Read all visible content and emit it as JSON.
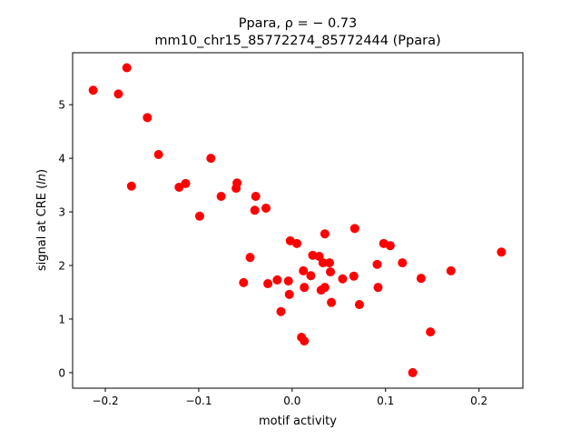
{
  "chart_data": {
    "type": "scatter",
    "title_line1": "Ppara, ρ = − 0.73",
    "title_line2": "mm10_chr15_85772274_85772444 (Ppara)",
    "xlabel": "motif activity",
    "ylabel": "signal at CRE (ln)",
    "ylabel_prefix": "signal at CRE (",
    "ylabel_italic": "ln",
    "ylabel_suffix": ")",
    "xlim": [
      -0.235,
      0.247
    ],
    "ylim": [
      -0.29,
      5.97
    ],
    "xticks": [
      -0.2,
      -0.1,
      0.0,
      0.1,
      0.2
    ],
    "xtick_labels": [
      "−0.2",
      "−0.1",
      "0.0",
      "0.1",
      "0.2"
    ],
    "yticks": [
      0,
      1,
      2,
      3,
      4,
      5
    ],
    "ytick_labels": [
      "0",
      "1",
      "2",
      "3",
      "4",
      "5"
    ],
    "grid": false,
    "marker_color": "#ff0000",
    "points": [
      [
        -0.213,
        5.27
      ],
      [
        -0.177,
        5.69
      ],
      [
        -0.186,
        5.2
      ],
      [
        -0.155,
        4.76
      ],
      [
        -0.143,
        4.07
      ],
      [
        -0.087,
        4.0
      ],
      [
        -0.172,
        3.48
      ],
      [
        -0.121,
        3.46
      ],
      [
        -0.114,
        3.53
      ],
      [
        -0.059,
        3.54
      ],
      [
        -0.06,
        3.44
      ],
      [
        -0.076,
        3.29
      ],
      [
        -0.039,
        3.29
      ],
      [
        -0.04,
        3.03
      ],
      [
        -0.028,
        3.07
      ],
      [
        -0.099,
        2.92
      ],
      [
        -0.045,
        2.15
      ],
      [
        -0.052,
        1.68
      ],
      [
        -0.026,
        1.66
      ],
      [
        -0.016,
        1.73
      ],
      [
        -0.004,
        1.71
      ],
      [
        -0.003,
        1.46
      ],
      [
        -0.012,
        1.14
      ],
      [
        -0.002,
        2.46
      ],
      [
        0.005,
        2.41
      ],
      [
        0.035,
        2.59
      ],
      [
        0.067,
        2.69
      ],
      [
        0.022,
        2.19
      ],
      [
        0.029,
        2.17
      ],
      [
        0.033,
        2.05
      ],
      [
        0.04,
        2.05
      ],
      [
        0.012,
        1.9
      ],
      [
        0.02,
        1.81
      ],
      [
        0.041,
        1.88
      ],
      [
        0.013,
        1.59
      ],
      [
        0.031,
        1.54
      ],
      [
        0.035,
        1.59
      ],
      [
        0.042,
        1.31
      ],
      [
        0.054,
        1.75
      ],
      [
        0.066,
        1.8
      ],
      [
        0.072,
        1.27
      ],
      [
        0.091,
        2.02
      ],
      [
        0.092,
        1.59
      ],
      [
        0.098,
        2.41
      ],
      [
        0.105,
        2.37
      ],
      [
        0.118,
        2.05
      ],
      [
        0.138,
        1.76
      ],
      [
        0.17,
        1.9
      ],
      [
        0.148,
        0.76
      ],
      [
        0.01,
        0.66
      ],
      [
        0.013,
        0.59
      ],
      [
        0.224,
        2.25
      ],
      [
        0.129,
        0.0
      ]
    ]
  }
}
